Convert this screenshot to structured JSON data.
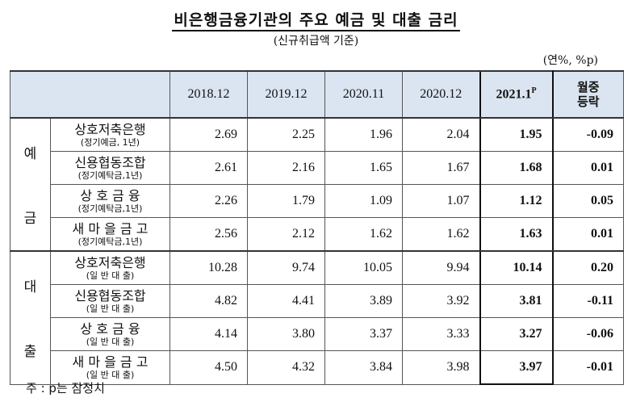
{
  "title": "비은행금융기관의 주요 예금 및 대출 금리",
  "subtitle": "(신규취급액 기준)",
  "unit": "(연%, %p)",
  "columns": [
    "2018.12",
    "2019.12",
    "2020.11",
    "2020.12",
    "2021.1",
    "월중\n등락"
  ],
  "current_col_base": "2021.1",
  "current_col_sup": "P",
  "change_col_line1": "월중",
  "change_col_line2": "등락",
  "groups": [
    {
      "label_top": "예",
      "label_bottom": "금",
      "rows": [
        {
          "name": "상호저축은행",
          "sub": "(정기예금, 1년)",
          "values": [
            "2.69",
            "2.25",
            "1.96",
            "2.04",
            "1.95",
            "-0.09"
          ]
        },
        {
          "name": "신용협동조합",
          "sub": "(정기예탁금,1년)",
          "values": [
            "2.61",
            "2.16",
            "1.65",
            "1.67",
            "1.68",
            "0.01"
          ]
        },
        {
          "name": "상 호 금 융",
          "sub": "(정기예탁금,1년)",
          "values": [
            "2.26",
            "1.79",
            "1.09",
            "1.07",
            "1.12",
            "0.05"
          ]
        },
        {
          "name": "새 마 을 금 고",
          "sub": "(정기예탁금,1년)",
          "values": [
            "2.56",
            "2.12",
            "1.62",
            "1.62",
            "1.63",
            "0.01"
          ]
        }
      ]
    },
    {
      "label_top": "대",
      "label_bottom": "출",
      "rows": [
        {
          "name": "상호저축은행",
          "sub": "(일 반 대 출)",
          "values": [
            "10.28",
            "9.74",
            "10.05",
            "9.94",
            "10.14",
            "0.20"
          ]
        },
        {
          "name": "신용협동조합",
          "sub": "(일 반 대 출)",
          "values": [
            "4.82",
            "4.41",
            "3.89",
            "3.92",
            "3.81",
            "-0.11"
          ]
        },
        {
          "name": "상 호 금 융",
          "sub": "(일 반 대 출)",
          "values": [
            "4.14",
            "3.80",
            "3.37",
            "3.33",
            "3.27",
            "-0.06"
          ]
        },
        {
          "name": "새 마 을 금 고",
          "sub": "(일 반 대 출)",
          "values": [
            "4.50",
            "4.32",
            "3.84",
            "3.98",
            "3.97",
            "-0.01"
          ]
        }
      ]
    }
  ],
  "note": "주 : p는 잠정치"
}
